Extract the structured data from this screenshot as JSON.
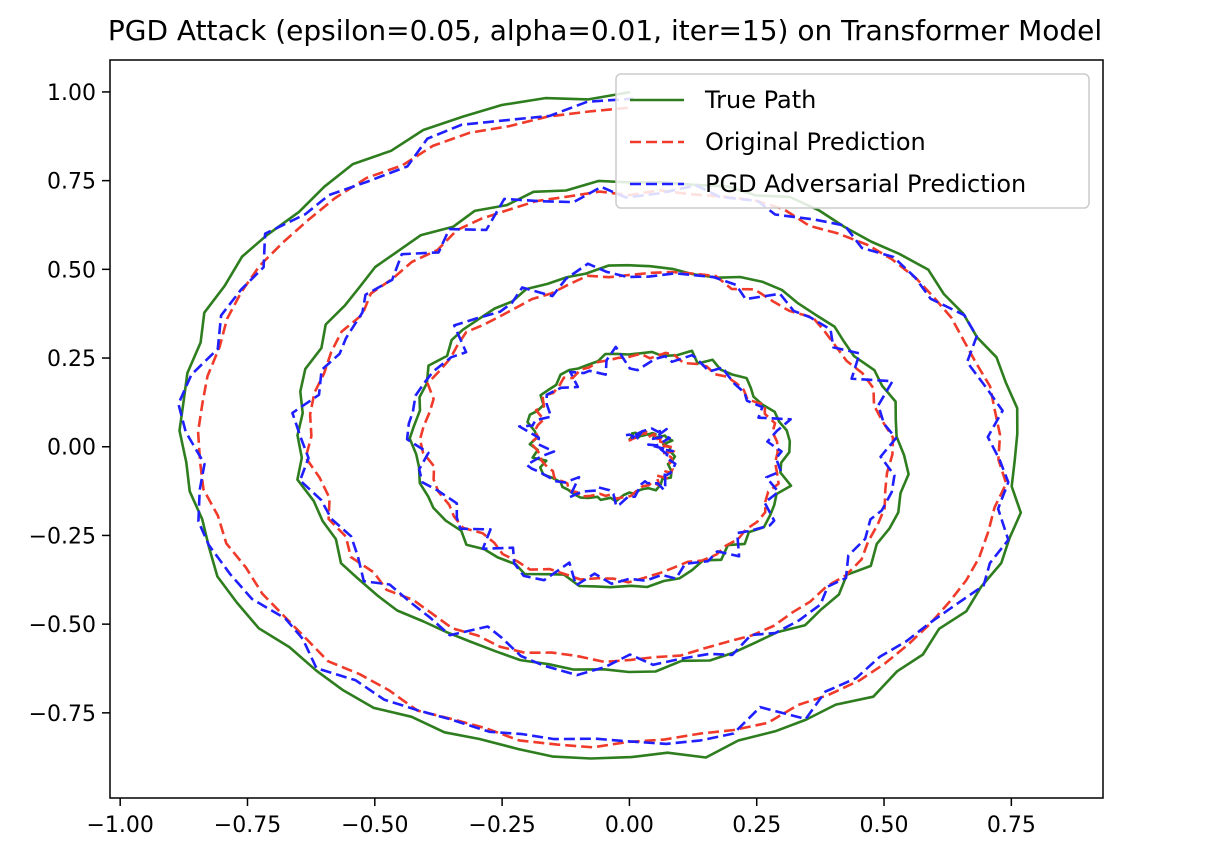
{
  "chart_data": {
    "type": "line",
    "title": "PGD Attack (epsilon=0.05, alpha=0.01, iter=15) on Transformer Model",
    "xlabel": "",
    "ylabel": "",
    "xlim": [
      -1.02,
      0.93
    ],
    "ylim": [
      -0.99,
      1.09
    ],
    "xticks": [
      -1.0,
      -0.75,
      -0.5,
      -0.25,
      0.0,
      0.25,
      0.5,
      0.75
    ],
    "xtick_labels": [
      "−1.00",
      "−0.75",
      "−0.50",
      "−0.25",
      "0.00",
      "0.25",
      "0.50",
      "0.75"
    ],
    "yticks": [
      -0.75,
      -0.5,
      -0.25,
      0.0,
      0.25,
      0.5,
      0.75,
      1.0
    ],
    "ytick_labels": [
      "−0.75",
      "−0.50",
      "−0.25",
      "0.00",
      "0.25",
      "0.50",
      "0.75",
      "1.00"
    ],
    "grid": false,
    "legend": "top-right",
    "spiral": {
      "turns": 4,
      "points": 280,
      "phase_start": 0.0,
      "radius_start": 0.02,
      "radius_end": 1.0,
      "x_scale": 0.94,
      "y_scale": 1.0
    },
    "series": [
      {
        "name": "True Path",
        "color": "#2e7d1e",
        "style": "solid",
        "noise": 0.012,
        "radial_offset": 0.0,
        "seed": 3
      },
      {
        "name": "Original Prediction",
        "color": "#f03a2a",
        "style": "dashed",
        "noise": 0.01,
        "radial_offset": -0.045,
        "seed": 7
      },
      {
        "name": "PGD Adversarial Prediction",
        "color": "#1f1fff",
        "style": "dashed",
        "noise": 0.028,
        "radial_offset": -0.035,
        "seed": 11
      }
    ]
  }
}
